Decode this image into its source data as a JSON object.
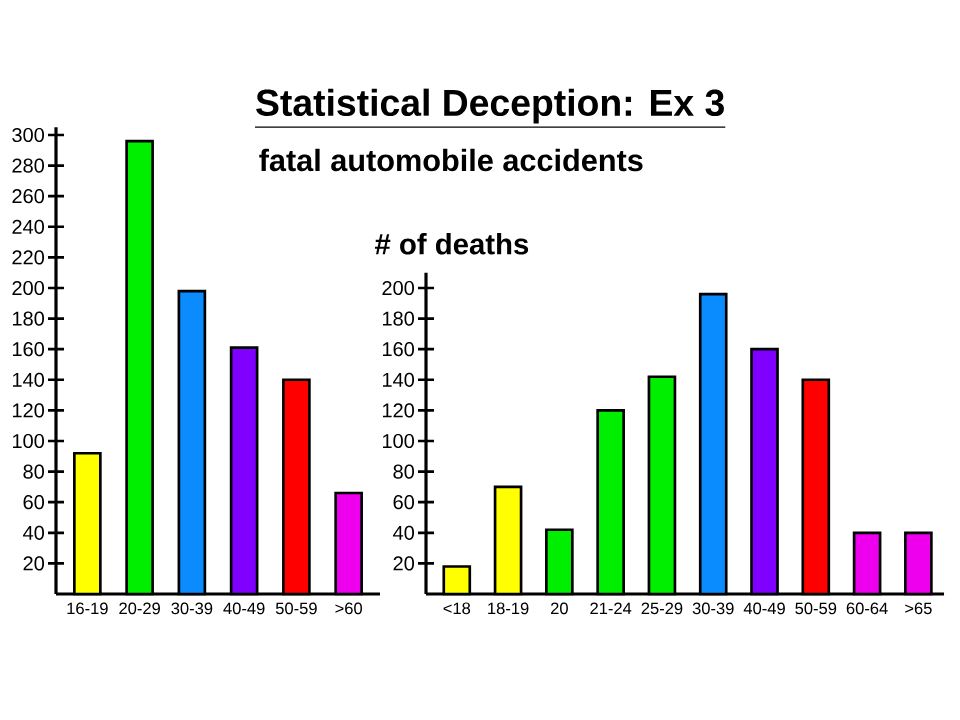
{
  "chart_data": [
    {
      "type": "bar",
      "title": "Statistical Deception: Ex 3",
      "subtitle": "fatal automobile accidents",
      "categories": [
        "16-19",
        "20-29",
        "30-39",
        "40-49",
        "50-59",
        ">60"
      ],
      "values": [
        92,
        296,
        198,
        161,
        140,
        66
      ],
      "colors": [
        "#ffff00",
        "#00ee00",
        "#0a8cff",
        "#8000ff",
        "#ff0000",
        "#ee00ee"
      ],
      "ylim": [
        0,
        305
      ],
      "yticks": [
        20,
        40,
        60,
        80,
        100,
        120,
        140,
        160,
        180,
        200,
        220,
        240,
        260,
        280,
        300
      ]
    },
    {
      "type": "bar",
      "ylabel": "# of deaths",
      "categories": [
        "<18",
        "18-19",
        "20",
        "21-24",
        "25-29",
        "30-39",
        "40-49",
        "50-59",
        "60-64",
        ">65"
      ],
      "values": [
        18,
        70,
        42,
        120,
        142,
        196,
        160,
        140,
        40,
        40
      ],
      "colors": [
        "#ffff00",
        "#ffff00",
        "#00ee00",
        "#00ee00",
        "#00ee00",
        "#0a8cff",
        "#8000ff",
        "#ff0000",
        "#ee00ee",
        "#ee00ee"
      ],
      "ylim": [
        0,
        210
      ],
      "yticks": [
        20,
        40,
        60,
        80,
        100,
        120,
        140,
        160,
        180,
        200
      ]
    }
  ]
}
